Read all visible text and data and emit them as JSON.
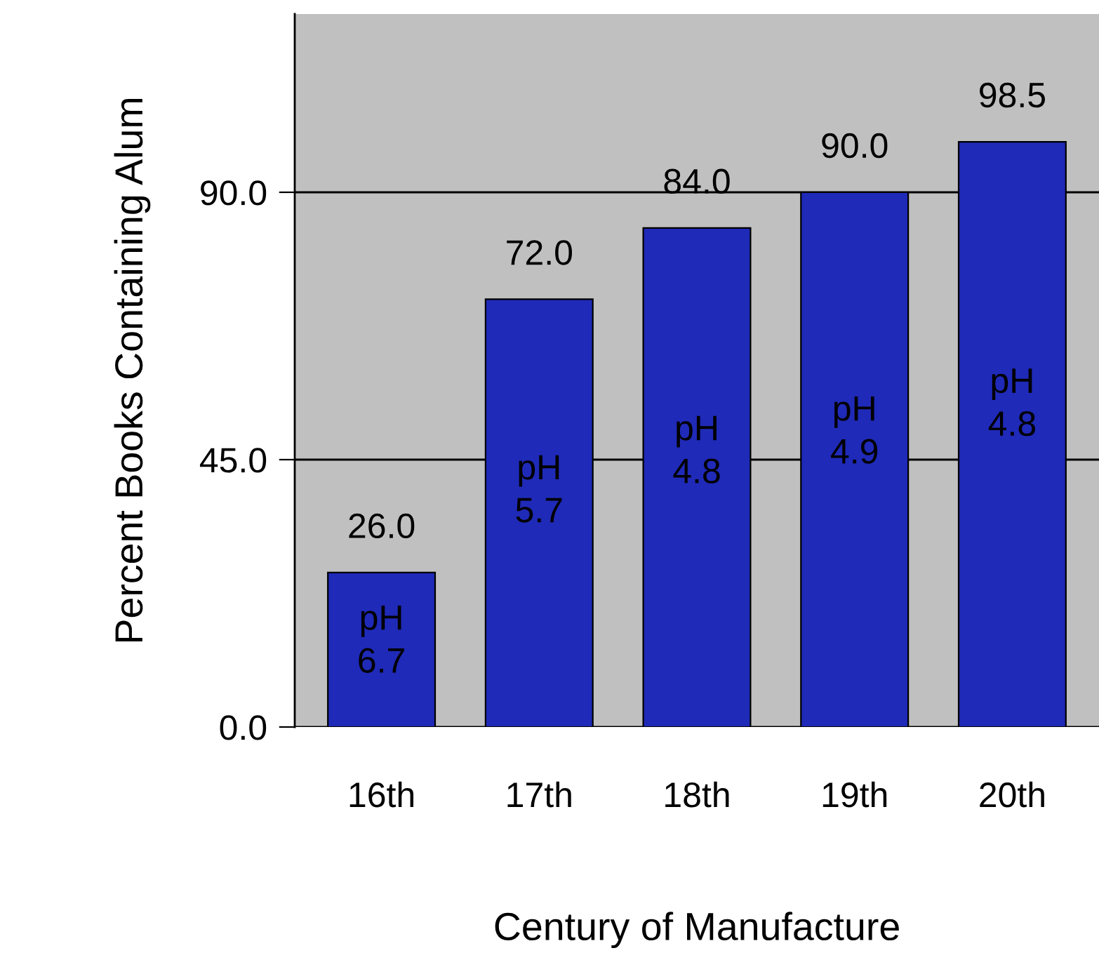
{
  "chart_data": {
    "type": "bar",
    "xlabel": "Century of Manufacture",
    "ylabel": "Percent Books Containing Alum",
    "categories": [
      "16th",
      "17th",
      "18th",
      "19th",
      "20th"
    ],
    "values": [
      26,
      72,
      84,
      90,
      98.5
    ],
    "color": "#1f2ab8",
    "value_labels": [
      "26.0",
      "72.0",
      "84.0",
      "90.0",
      "98.5"
    ],
    "ylim": [
      0,
      120
    ],
    "yticks": [
      {
        "value": 0,
        "label": "0.0"
      },
      {
        "value": 45,
        "label": "45.0"
      },
      {
        "value": 90,
        "label": "90.0"
      }
    ],
    "grid": "y",
    "legend": false,
    "annotations": [
      "pH\n6.7",
      "pH\n5.7",
      "pH\n4.8",
      "pH\n4.9",
      "pH\n4.8"
    ]
  }
}
